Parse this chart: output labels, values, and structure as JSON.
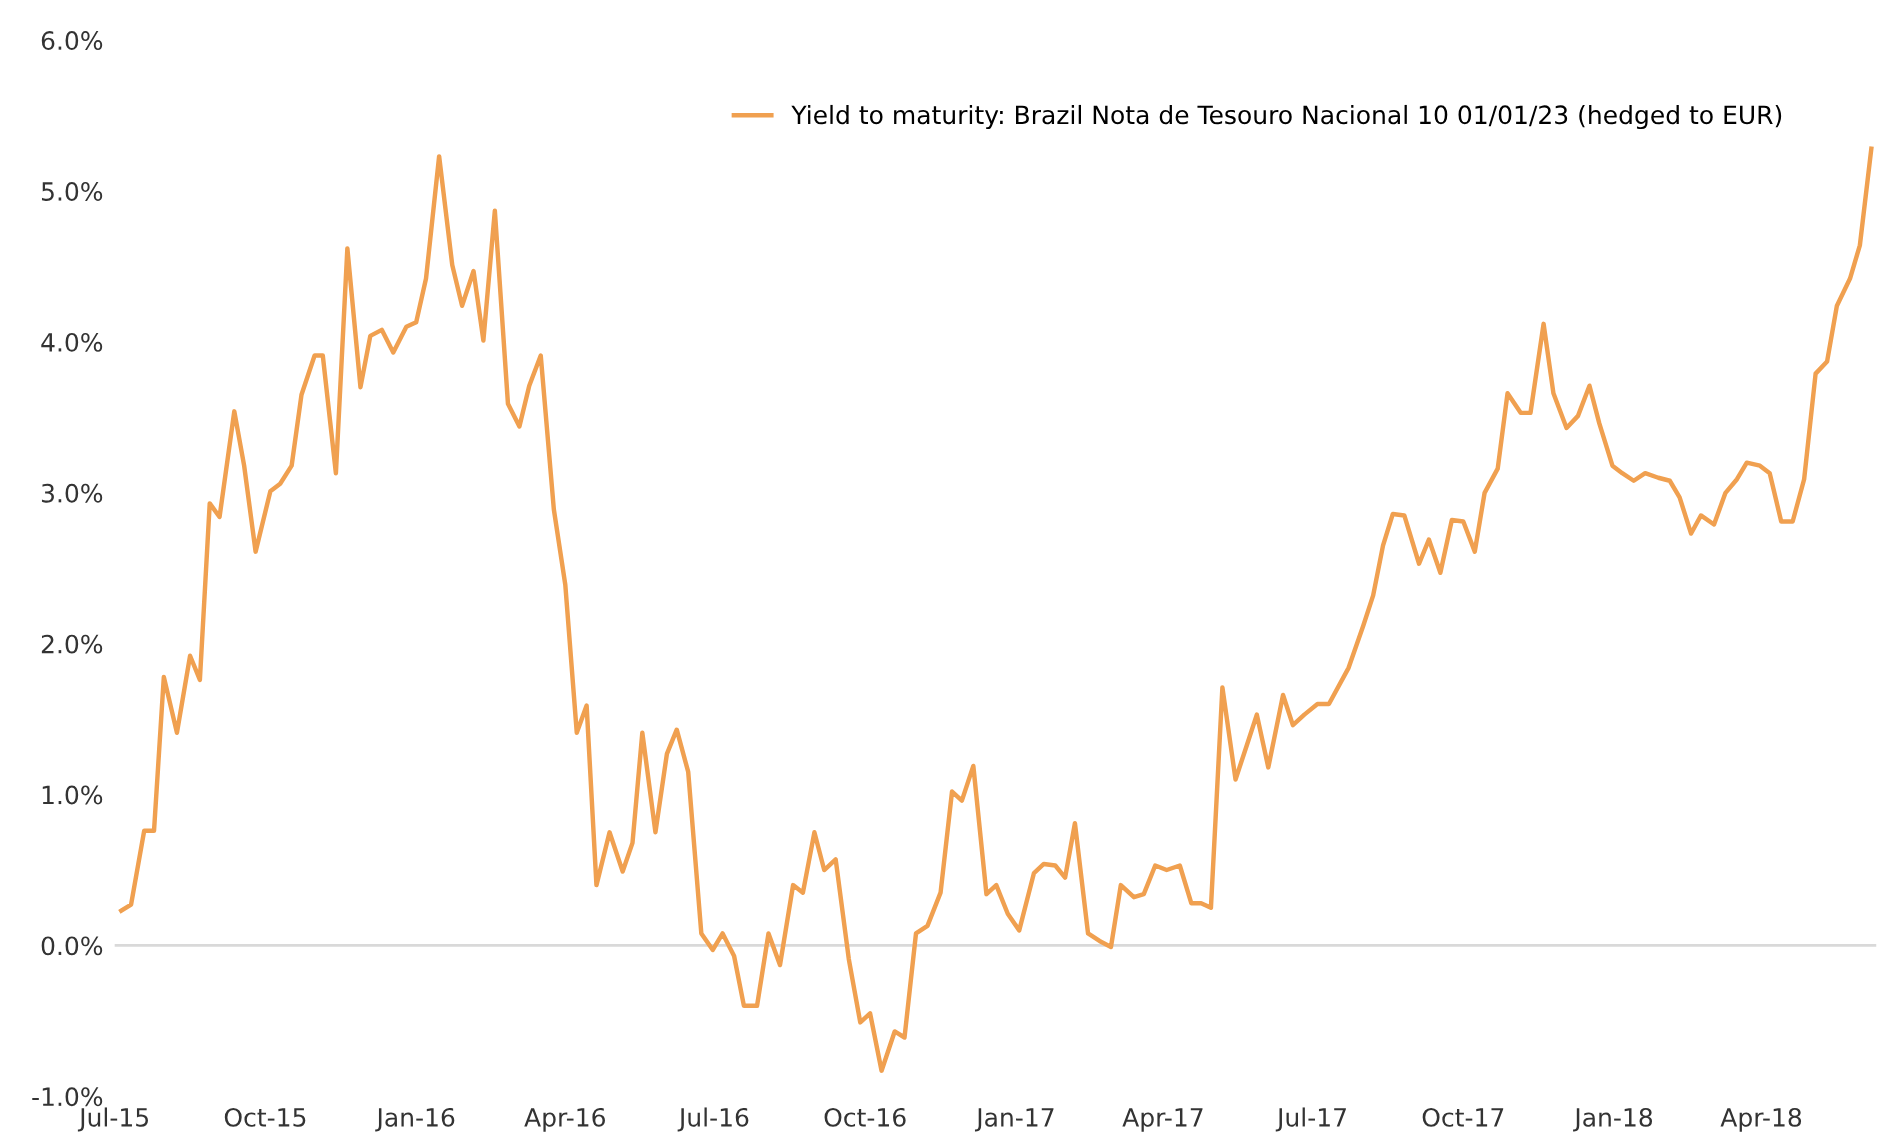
{
  "chart_data": {
    "type": "line",
    "legend": "top right",
    "grid": false,
    "marker": "none",
    "line_style": "solid",
    "xlim": [
      "2015-07-01",
      "2018-06-10"
    ],
    "ylim": [
      -1,
      6
    ],
    "xticks": [
      {
        "value": "2015-07-01",
        "label": "Jul-15"
      },
      {
        "value": "2015-10-01",
        "label": "Oct-15"
      },
      {
        "value": "2016-01-01",
        "label": "Jan-16"
      },
      {
        "value": "2016-04-01",
        "label": "Apr-16"
      },
      {
        "value": "2016-07-01",
        "label": "Jul-16"
      },
      {
        "value": "2016-10-01",
        "label": "Oct-16"
      },
      {
        "value": "2017-01-01",
        "label": "Jan-17"
      },
      {
        "value": "2017-04-01",
        "label": "Apr-17"
      },
      {
        "value": "2017-07-01",
        "label": "Jul-17"
      },
      {
        "value": "2017-10-01",
        "label": "Oct-17"
      },
      {
        "value": "2018-01-01",
        "label": "Jan-18"
      },
      {
        "value": "2018-04-01",
        "label": "Apr-18"
      }
    ],
    "yticks": [
      {
        "value": -1,
        "label": "-1.0%"
      },
      {
        "value": 0,
        "label": "0.0%"
      },
      {
        "value": 1,
        "label": "1.0%"
      },
      {
        "value": 2,
        "label": "2.0%"
      },
      {
        "value": 3,
        "label": "3.0%"
      },
      {
        "value": 4,
        "label": "4.0%"
      },
      {
        "value": 5,
        "label": "5.0%"
      },
      {
        "value": 6,
        "label": "6.0%"
      }
    ],
    "ref_lines": [
      {
        "axis": "y",
        "value": 0,
        "label": null,
        "color": "#d9d9d9"
      }
    ],
    "x": [
      "2015-07-05",
      "2015-07-11",
      "2015-07-19",
      "2015-07-25",
      "2015-07-31",
      "2015-08-08",
      "2015-08-16",
      "2015-08-22",
      "2015-08-28",
      "2015-09-03",
      "2015-09-12",
      "2015-09-18",
      "2015-09-25",
      "2015-10-04",
      "2015-10-10",
      "2015-10-17",
      "2015-10-23",
      "2015-10-31",
      "2015-11-05",
      "2015-11-13",
      "2015-11-20",
      "2015-11-28",
      "2015-12-04",
      "2015-12-11",
      "2015-12-18",
      "2015-12-26",
      "2016-01-01",
      "2016-01-07",
      "2016-01-15",
      "2016-01-23",
      "2016-01-29",
      "2016-02-05",
      "2016-02-11",
      "2016-02-18",
      "2016-02-26",
      "2016-03-04",
      "2016-03-10",
      "2016-03-17",
      "2016-03-25",
      "2016-04-01",
      "2016-04-08",
      "2016-04-14",
      "2016-04-20",
      "2016-04-28",
      "2016-05-06",
      "2016-05-12",
      "2016-05-18",
      "2016-05-26",
      "2016-06-02",
      "2016-06-08",
      "2016-06-15",
      "2016-06-23",
      "2016-06-30",
      "2016-07-06",
      "2016-07-13",
      "2016-07-19",
      "2016-07-27",
      "2016-08-03",
      "2016-08-10",
      "2016-08-18",
      "2016-08-24",
      "2016-08-31",
      "2016-09-06",
      "2016-09-13",
      "2016-09-21",
      "2016-09-28",
      "2016-10-04",
      "2016-10-11",
      "2016-10-19",
      "2016-10-25",
      "2016-11-01",
      "2016-11-08",
      "2016-11-16",
      "2016-11-23",
      "2016-11-29",
      "2016-12-06",
      "2016-12-14",
      "2016-12-20",
      "2016-12-27",
      "2017-01-03",
      "2017-01-12",
      "2017-01-18",
      "2017-01-25",
      "2017-01-31",
      "2017-02-06",
      "2017-02-14",
      "2017-02-21",
      "2017-02-28",
      "2017-03-06",
      "2017-03-14",
      "2017-03-20",
      "2017-03-27",
      "2017-04-03",
      "2017-04-11",
      "2017-04-18",
      "2017-04-24",
      "2017-04-30",
      "2017-05-07",
      "2017-05-15",
      "2017-05-22",
      "2017-05-28",
      "2017-06-04",
      "2017-06-13",
      "2017-06-19",
      "2017-06-26",
      "2017-07-04",
      "2017-07-11",
      "2017-07-23",
      "2017-08-01",
      "2017-08-07",
      "2017-08-13",
      "2017-08-19",
      "2017-08-26",
      "2017-09-04",
      "2017-09-10",
      "2017-09-17",
      "2017-09-24",
      "2017-10-01",
      "2017-10-08",
      "2017-10-14",
      "2017-10-22",
      "2017-10-28",
      "2017-11-05",
      "2017-11-11",
      "2017-11-19",
      "2017-11-25",
      "2017-12-03",
      "2017-12-10",
      "2017-12-17",
      "2017-12-23",
      "2017-12-31",
      "2018-01-06",
      "2018-01-13",
      "2018-01-20",
      "2018-01-28",
      "2018-02-04",
      "2018-02-10",
      "2018-02-17",
      "2018-02-23",
      "2018-03-03",
      "2018-03-10",
      "2018-03-17",
      "2018-03-23",
      "2018-03-31",
      "2018-04-06",
      "2018-04-13",
      "2018-04-20",
      "2018-04-27",
      "2018-05-04",
      "2018-05-11",
      "2018-05-17",
      "2018-05-25",
      "2018-05-31",
      "2018-06-07"
    ],
    "series": [
      {
        "name": "Yield to maturity: Brazil Nota de Tesouro Nacional 10 01/01/23 (hedged to EUR)",
        "color": "#f0a050",
        "values": [
          0.23,
          0.27,
          0.76,
          0.76,
          1.78,
          1.41,
          1.92,
          1.76,
          2.93,
          2.84,
          3.54,
          3.18,
          2.61,
          3.01,
          3.06,
          3.18,
          3.65,
          3.91,
          3.91,
          3.13,
          4.62,
          3.7,
          4.04,
          4.08,
          3.93,
          4.1,
          4.13,
          4.42,
          5.23,
          4.51,
          4.24,
          4.47,
          4.01,
          4.87,
          3.59,
          3.44,
          3.71,
          3.91,
          2.89,
          2.39,
          1.41,
          1.59,
          0.4,
          0.75,
          0.49,
          0.68,
          1.41,
          0.75,
          1.27,
          1.43,
          1.15,
          0.08,
          -0.03,
          0.08,
          -0.07,
          -0.4,
          -0.4,
          0.08,
          -0.13,
          0.4,
          0.35,
          0.75,
          0.5,
          0.57,
          -0.09,
          -0.51,
          -0.45,
          -0.83,
          -0.57,
          -0.61,
          0.08,
          0.13,
          0.35,
          1.02,
          0.96,
          1.19,
          0.34,
          0.4,
          0.21,
          0.1,
          0.48,
          0.54,
          0.53,
          0.45,
          0.81,
          0.08,
          0.03,
          -0.01,
          0.4,
          0.32,
          0.34,
          0.53,
          0.5,
          0.53,
          0.28,
          0.28,
          0.25,
          1.71,
          1.1,
          1.33,
          1.53,
          1.18,
          1.66,
          1.46,
          1.53,
          1.6,
          1.6,
          1.84,
          2.12,
          2.32,
          2.65,
          2.86,
          2.85,
          2.53,
          2.69,
          2.47,
          2.82,
          2.81,
          2.61,
          3.0,
          3.16,
          3.66,
          3.53,
          3.53,
          4.12,
          3.66,
          3.43,
          3.51,
          3.71,
          3.46,
          3.18,
          3.13,
          3.08,
          3.13,
          3.1,
          3.08,
          2.97,
          2.73,
          2.85,
          2.79,
          3.0,
          3.09,
          3.2,
          3.18,
          3.13,
          2.81,
          2.81,
          3.09,
          3.79,
          3.87,
          4.24,
          4.42,
          4.64,
          5.28
        ]
      }
    ]
  }
}
